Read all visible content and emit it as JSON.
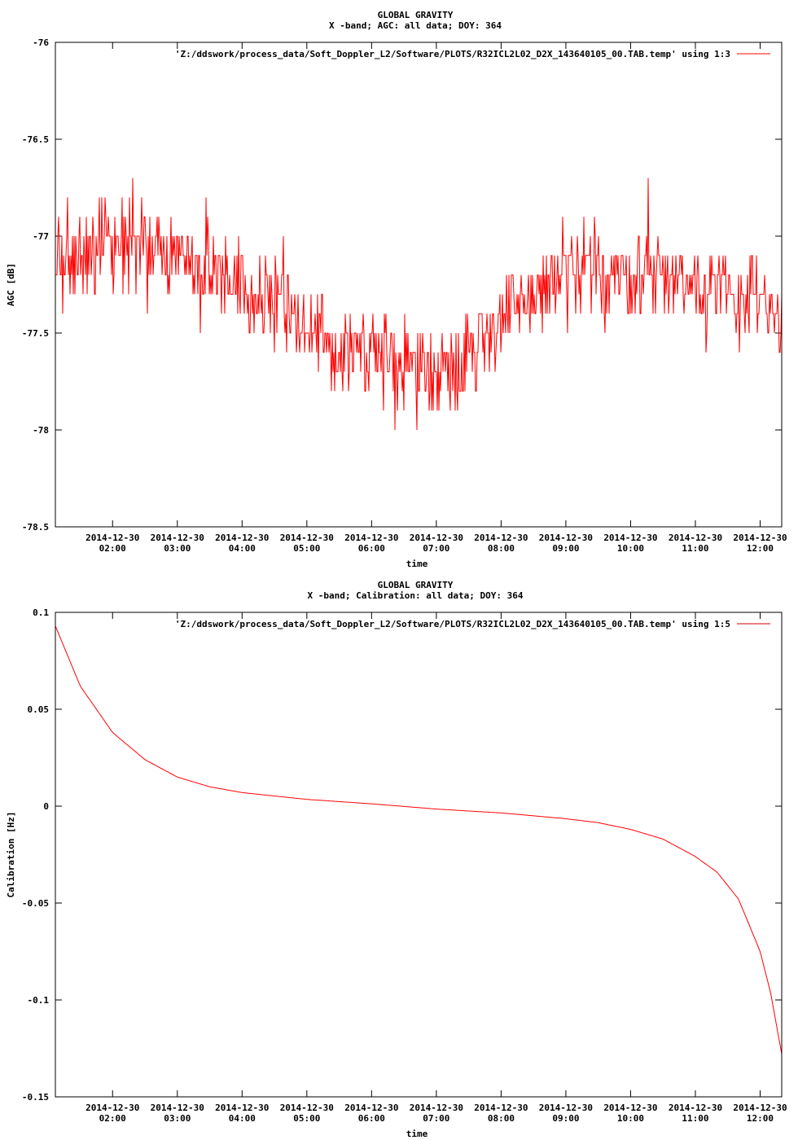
{
  "chart_data": [
    {
      "type": "line",
      "title": "GLOBAL GRAVITY",
      "subtitle": "X -band; AGC: all data; DOY: 364",
      "xlabel": "time",
      "ylabel": "AGC [dB]",
      "xlim": [
        "2014-12-30 01:07",
        "2014-12-30 12:20"
      ],
      "ylim": [
        -78.5,
        -76
      ],
      "yticks": [
        -76,
        -76.5,
        -77,
        -77.5,
        -78,
        -78.5
      ],
      "ytick_labels": [
        "-76",
        "-76.5",
        "-77",
        "-77.5",
        "-78",
        "-78.5"
      ],
      "xticks": [
        "2014-12-30 02:00",
        "2014-12-30 03:00",
        "2014-12-30 04:00",
        "2014-12-30 05:00",
        "2014-12-30 06:00",
        "2014-12-30 07:00",
        "2014-12-30 08:00",
        "2014-12-30 09:00",
        "2014-12-30 10:00",
        "2014-12-30 11:00",
        "2014-12-30 12:00"
      ],
      "xtick_labels": [
        [
          "2014-12-30",
          "02:00"
        ],
        [
          "2014-12-30",
          "03:00"
        ],
        [
          "2014-12-30",
          "04:00"
        ],
        [
          "2014-12-30",
          "05:00"
        ],
        [
          "2014-12-30",
          "06:00"
        ],
        [
          "2014-12-30",
          "07:00"
        ],
        [
          "2014-12-30",
          "08:00"
        ],
        [
          "2014-12-30",
          "09:00"
        ],
        [
          "2014-12-30",
          "10:00"
        ],
        [
          "2014-12-30",
          "11:00"
        ],
        [
          "2014-12-30",
          "12:00"
        ]
      ],
      "legend": {
        "label": "'Z:/ddswork/process_data/Soft_Doppler_L2/Software/PLOTS/R32ICL2L02_D2X_143640105_00.TAB.temp' using 1:3",
        "placement": "top-right"
      },
      "color": "#ff0000",
      "grid": false,
      "series": [
        {
          "x": [
            "2014-12-30 01:07",
            "2014-12-30 01:30",
            "2014-12-30 02:00",
            "2014-12-30 02:30",
            "2014-12-30 03:00",
            "2014-12-30 03:30",
            "2014-12-30 04:00",
            "2014-12-30 04:30",
            "2014-12-30 05:00",
            "2014-12-30 05:30",
            "2014-12-30 06:00",
            "2014-12-30 06:30",
            "2014-12-30 07:00",
            "2014-12-30 07:30",
            "2014-12-30 08:00",
            "2014-12-30 08:30",
            "2014-12-30 09:00",
            "2014-12-30 09:30",
            "2014-12-30 10:00",
            "2014-12-30 10:30",
            "2014-12-30 11:00",
            "2014-12-30 11:30",
            "2014-12-30 12:00",
            "2014-12-30 12:20"
          ],
          "y": [
            -77.1,
            -77.1,
            -77.05,
            -77.05,
            -77.1,
            -77.15,
            -77.25,
            -77.35,
            -77.5,
            -77.55,
            -77.6,
            -77.65,
            -77.7,
            -77.6,
            -77.45,
            -77.3,
            -77.2,
            -77.2,
            -77.2,
            -77.2,
            -77.25,
            -77.3,
            -77.35,
            -77.45
          ],
          "noise_amplitude_db": 0.35
        }
      ]
    },
    {
      "type": "line",
      "title": "GLOBAL GRAVITY",
      "subtitle": "X -band; Calibration: all data; DOY: 364",
      "xlabel": "time",
      "ylabel": "Calibration [Hz]",
      "xlim": [
        "2014-12-30 01:07",
        "2014-12-30 12:20"
      ],
      "ylim": [
        -0.15,
        0.1
      ],
      "yticks": [
        0.1,
        0.05,
        0,
        -0.05,
        -0.1,
        -0.15
      ],
      "ytick_labels": [
        "0.1",
        "0.05",
        "0",
        "-0.05",
        "-0.1",
        "-0.15"
      ],
      "xticks": [
        "2014-12-30 02:00",
        "2014-12-30 03:00",
        "2014-12-30 04:00",
        "2014-12-30 05:00",
        "2014-12-30 06:00",
        "2014-12-30 07:00",
        "2014-12-30 08:00",
        "2014-12-30 09:00",
        "2014-12-30 10:00",
        "2014-12-30 11:00",
        "2014-12-30 12:00"
      ],
      "xtick_labels": [
        [
          "2014-12-30",
          "02:00"
        ],
        [
          "2014-12-30",
          "03:00"
        ],
        [
          "2014-12-30",
          "04:00"
        ],
        [
          "2014-12-30",
          "05:00"
        ],
        [
          "2014-12-30",
          "06:00"
        ],
        [
          "2014-12-30",
          "07:00"
        ],
        [
          "2014-12-30",
          "08:00"
        ],
        [
          "2014-12-30",
          "09:00"
        ],
        [
          "2014-12-30",
          "10:00"
        ],
        [
          "2014-12-30",
          "11:00"
        ],
        [
          "2014-12-30",
          "12:00"
        ]
      ],
      "legend": {
        "label": "'Z:/ddswork/process_data/Soft_Doppler_L2/Software/PLOTS/R32ICL2L02_D2X_143640105_00.TAB.temp' using 1:5",
        "placement": "top-right"
      },
      "color": "#cc0000",
      "grid": false,
      "series": [
        {
          "x": [
            "2014-12-30 01:07",
            "2014-12-30 01:30",
            "2014-12-30 02:00",
            "2014-12-30 02:30",
            "2014-12-30 03:00",
            "2014-12-30 03:30",
            "2014-12-30 04:00",
            "2014-12-30 05:00",
            "2014-12-30 06:00",
            "2014-12-30 07:00",
            "2014-12-30 08:00",
            "2014-12-30 09:00",
            "2014-12-30 09:30",
            "2014-12-30 10:00",
            "2014-12-30 10:30",
            "2014-12-30 11:00",
            "2014-12-30 11:20",
            "2014-12-30 11:40",
            "2014-12-30 12:00",
            "2014-12-30 12:10",
            "2014-12-30 12:20"
          ],
          "y": [
            0.093,
            0.062,
            0.038,
            0.024,
            0.015,
            0.01,
            0.007,
            0.0035,
            0.0012,
            -0.0015,
            -0.0035,
            -0.0065,
            -0.0085,
            -0.012,
            -0.017,
            -0.026,
            -0.034,
            -0.048,
            -0.075,
            -0.097,
            -0.128
          ]
        }
      ]
    }
  ]
}
